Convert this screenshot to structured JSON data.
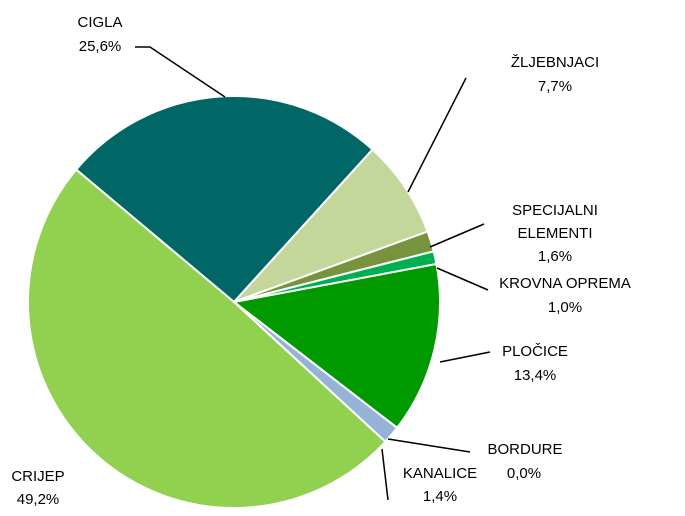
{
  "chart_data": {
    "type": "pie",
    "categories": [
      "CIGLA",
      "ŽLJEBNJACI",
      "SPECIJALNI ELEMENTI",
      "KROVNA OPREMA",
      "PLOČICE",
      "BORDURE",
      "KANALICE",
      "CRIJEP"
    ],
    "values": [
      25.6,
      7.7,
      1.6,
      1.0,
      13.4,
      0.0,
      1.4,
      49.2
    ],
    "value_labels": [
      "25,6%",
      "7,7%",
      "1,6%",
      "1,0%",
      "13,4%",
      "0,0%",
      "1,4%",
      "49,2%"
    ],
    "colors": [
      "#006666",
      "#c4d79b",
      "#77933c",
      "#00b050",
      "#009900",
      "#4f81bd",
      "#95b3d7",
      "#92d050"
    ]
  }
}
